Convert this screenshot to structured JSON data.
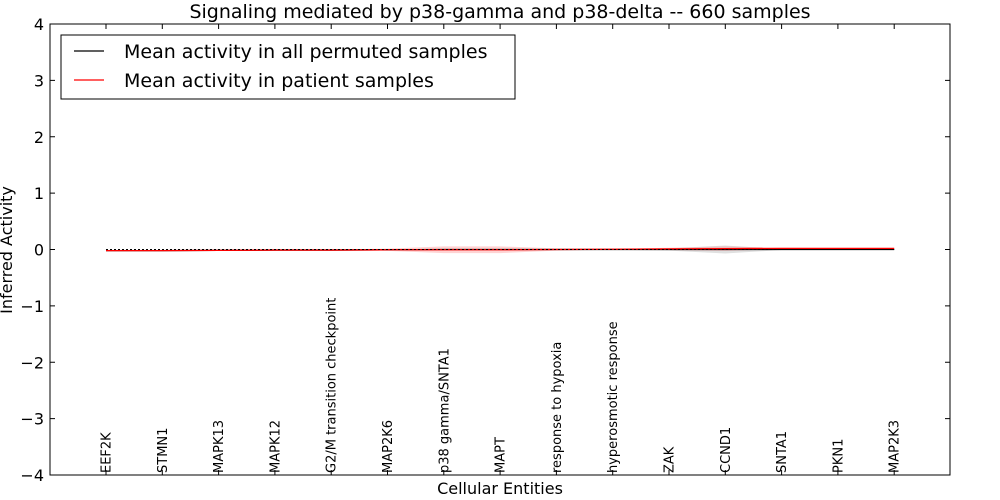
{
  "chart_data": {
    "type": "line",
    "title": "Signaling mediated by p38-gamma and p38-delta -- 660 samples",
    "xlabel": "Cellular Entities",
    "ylabel": "Inferred Activity",
    "ylim": [
      -4,
      4
    ],
    "yticks": [
      -4,
      -3,
      -2,
      -1,
      0,
      1,
      2,
      3,
      4
    ],
    "ytick_labels": [
      "−4",
      "−3",
      "−2",
      "−1",
      "0",
      "1",
      "2",
      "3",
      "4"
    ],
    "categories": [
      "EEF2K",
      "STMN1",
      "MAPK13",
      "MAPK12",
      "G2/M transition checkpoint",
      "MAP2K6",
      "p38 gamma/SNTA1",
      "MAPT",
      "response to hypoxia",
      "hyperosmotic response",
      "ZAK",
      "CCND1",
      "SNTA1",
      "PKN1",
      "MAP2K3"
    ],
    "legend_position": "top-left",
    "grid": false,
    "series": [
      {
        "name": "Mean activity in all permuted samples",
        "color": "#000000",
        "values": [
          -0.02,
          -0.02,
          -0.015,
          -0.01,
          -0.01,
          -0.005,
          0.0,
          0.0,
          0.0,
          0.0,
          0.0,
          0.0,
          0.0,
          0.0,
          0.0
        ],
        "band": [
          0.005,
          0.005,
          0.005,
          0.005,
          0.005,
          0.005,
          0.01,
          0.01,
          0.005,
          0.005,
          0.02,
          0.07,
          0.01,
          0.005,
          0.005
        ]
      },
      {
        "name": "Mean activity in patient samples",
        "color": "#ff0000",
        "values": [
          -0.02,
          -0.02,
          -0.015,
          -0.01,
          -0.01,
          -0.005,
          -0.005,
          -0.005,
          0.0,
          0.005,
          0.01,
          0.015,
          0.02,
          0.02,
          0.02
        ],
        "band": [
          0.005,
          0.005,
          0.005,
          0.005,
          0.01,
          0.02,
          0.06,
          0.06,
          0.02,
          0.01,
          0.02,
          0.04,
          0.01,
          0.005,
          0.005
        ]
      }
    ]
  }
}
